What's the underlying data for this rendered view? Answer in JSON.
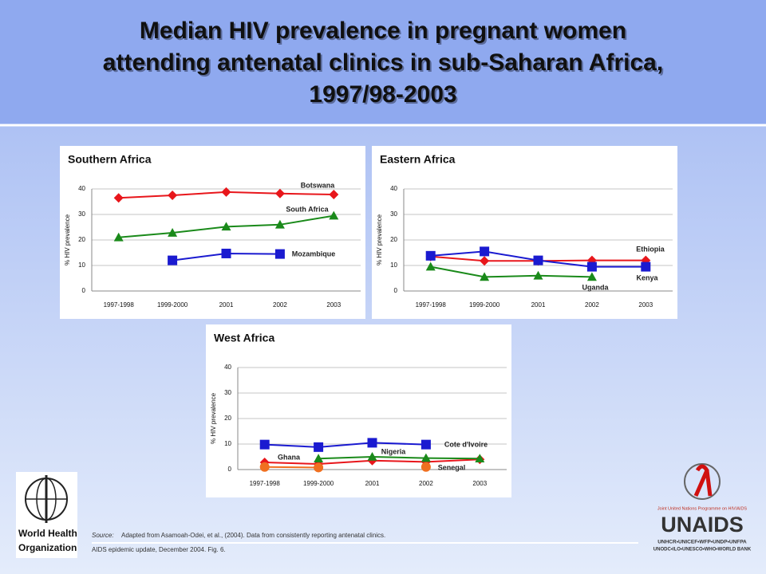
{
  "title": [
    "Median HIV prevalence in pregnant women",
    "attending antenatal clinics in sub-Saharan Africa,",
    "1997/98-2003"
  ],
  "chart_data": [
    {
      "type": "line",
      "title": "Southern Africa",
      "ylabel": "% HIV prevalence",
      "categories": [
        "1997-1998",
        "1999-2000",
        "2001",
        "2002",
        "2003"
      ],
      "ylim": [
        0,
        40
      ],
      "yticks": [
        0,
        10,
        20,
        30,
        40
      ],
      "grid": true,
      "series": [
        {
          "name": "Botswana",
          "color": "#e8161b",
          "marker": "diamond",
          "values": [
            36.5,
            37.5,
            38.8,
            38.2,
            37.8
          ]
        },
        {
          "name": "South Africa",
          "color": "#1a8a1a",
          "marker": "triangle",
          "values": [
            21,
            22.8,
            25.2,
            26,
            29.5
          ]
        },
        {
          "name": "Mozambique",
          "color": "#1a1ad0",
          "marker": "square",
          "values": [
            null,
            12,
            14.7,
            14.5,
            null
          ]
        }
      ]
    },
    {
      "type": "line",
      "title": "Eastern Africa",
      "ylabel": "% HIV prevalence",
      "categories": [
        "1997-1998",
        "1999-2000",
        "2001",
        "2002",
        "2003"
      ],
      "ylim": [
        0,
        40
      ],
      "yticks": [
        0,
        10,
        20,
        30,
        40
      ],
      "grid": true,
      "series": [
        {
          "name": "Ethiopia",
          "color": "#e8161b",
          "marker": "diamond",
          "values": [
            13.5,
            11.8,
            11.8,
            12,
            12
          ]
        },
        {
          "name": "Kenya",
          "color": "#1a1ad0",
          "marker": "square",
          "values": [
            13.8,
            15.5,
            12,
            9.5,
            9.5
          ]
        },
        {
          "name": "Uganda",
          "color": "#1a8a1a",
          "marker": "triangle",
          "values": [
            9.5,
            5.5,
            6,
            5.5,
            null
          ]
        }
      ]
    },
    {
      "type": "line",
      "title": "West Africa",
      "ylabel": "% HIV prevalence",
      "categories": [
        "1997-1998",
        "1999-2000",
        "2001",
        "2002",
        "2003"
      ],
      "ylim": [
        0,
        40
      ],
      "yticks": [
        0,
        10,
        20,
        30,
        40
      ],
      "grid": true,
      "series": [
        {
          "name": "Cote d'Ivoire",
          "color": "#1a1ad0",
          "marker": "square",
          "values": [
            9.8,
            8.8,
            10.5,
            9.8,
            null
          ]
        },
        {
          "name": "Ghana",
          "color": "#e8161b",
          "marker": "diamond",
          "values": [
            2.8,
            2.2,
            3.5,
            3,
            4
          ]
        },
        {
          "name": "Nigeria",
          "color": "#1a8a1a",
          "marker": "triangle",
          "values": [
            null,
            4.3,
            5,
            4.5,
            4.3
          ]
        },
        {
          "name": "Senegal",
          "color": "#f07020",
          "marker": "circle",
          "values": [
            1,
            0.8,
            null,
            1,
            null
          ]
        }
      ]
    }
  ],
  "source_label": "Source:",
  "source": "Adapted from Asamoah-Odei, et al., (2004).  Data from consistently reporting antenatal clinics.",
  "footnote": "AIDS epidemic update, December 2004.  Fig. 6.",
  "who_logo": [
    "World Health",
    "Organization"
  ],
  "unaids_logo": {
    "programme": "Joint United Nations Programme on HIV/AIDS",
    "name": "UNAIDS",
    "cosponsors": [
      "UNHCR•UNICEF•WFP•UNDP•UNFPA",
      "UNODC•ILO•UNESCO•WHO•WORLD BANK"
    ]
  }
}
